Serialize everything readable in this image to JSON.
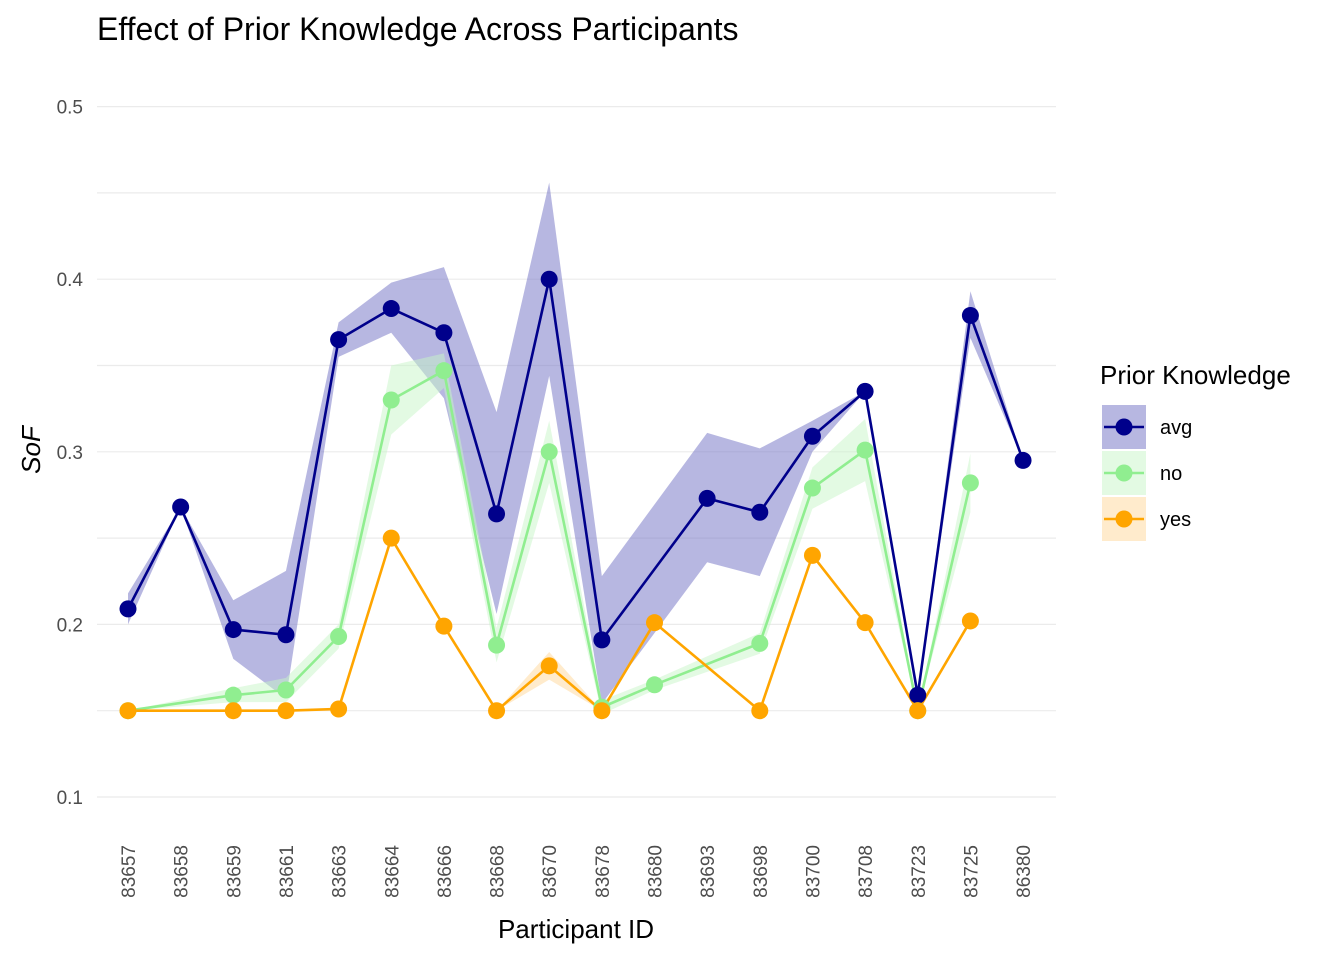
{
  "chart_data": {
    "type": "line",
    "title": "Effect of Prior Knowledge Across Participants",
    "xlabel": "Participant ID",
    "ylabel": "SoF",
    "ylim": [
      0.1,
      0.5
    ],
    "yticks": [
      0.1,
      0.2,
      0.3,
      0.4,
      0.5
    ],
    "yticks_labels": [
      "0.1",
      "0.2",
      "0.3",
      "0.4",
      "0.5"
    ],
    "grid": true,
    "legend": {
      "title": "Prior Knowledge",
      "position": "right"
    },
    "categories": [
      "83657",
      "83658",
      "83659",
      "83661",
      "83663",
      "83664",
      "83666",
      "83668",
      "83670",
      "83678",
      "83680",
      "83693",
      "83698",
      "83700",
      "83708",
      "83723",
      "83725",
      "86380"
    ],
    "series": [
      {
        "name": "avg",
        "color": "#00008B",
        "band_color": "#7B7BC8",
        "values": [
          0.209,
          0.268,
          0.197,
          0.194,
          0.365,
          0.383,
          0.369,
          0.264,
          0.4,
          0.191,
          null,
          0.273,
          0.265,
          0.309,
          0.335,
          0.159,
          0.379,
          0.295
        ],
        "lower": [
          0.2,
          0.268,
          0.18,
          0.157,
          0.355,
          0.369,
          0.331,
          0.206,
          0.344,
          0.154,
          null,
          0.236,
          0.228,
          0.3,
          0.335,
          0.159,
          0.366,
          0.295
        ],
        "upper": [
          0.218,
          0.268,
          0.214,
          0.231,
          0.375,
          0.398,
          0.407,
          0.323,
          0.456,
          0.228,
          null,
          0.311,
          0.302,
          0.318,
          0.335,
          0.159,
          0.393,
          0.295
        ]
      },
      {
        "name": "no",
        "color": "#90EE90",
        "band_color": "#C8F5C8",
        "values": [
          0.15,
          null,
          0.159,
          0.162,
          0.193,
          0.33,
          0.347,
          0.188,
          0.3,
          0.152,
          0.165,
          null,
          0.189,
          0.279,
          0.301,
          0.15,
          0.282,
          null
        ],
        "lower": [
          0.15,
          null,
          0.155,
          0.155,
          0.186,
          0.31,
          0.337,
          0.178,
          0.282,
          0.148,
          0.162,
          null,
          0.183,
          0.267,
          0.283,
          0.15,
          0.265,
          null
        ],
        "upper": [
          0.15,
          null,
          0.163,
          0.169,
          0.2,
          0.35,
          0.357,
          0.198,
          0.318,
          0.156,
          0.168,
          null,
          0.195,
          0.291,
          0.319,
          0.15,
          0.299,
          null
        ]
      },
      {
        "name": "yes",
        "color": "#FFA500",
        "band_color": "#FFD89A",
        "values": [
          0.15,
          null,
          0.15,
          0.15,
          0.151,
          0.25,
          0.199,
          0.15,
          0.176,
          0.15,
          0.201,
          null,
          0.15,
          0.24,
          0.201,
          0.15,
          0.202,
          null
        ],
        "lower": [
          0.15,
          null,
          0.15,
          0.15,
          0.151,
          0.25,
          0.199,
          0.15,
          0.168,
          0.15,
          0.201,
          null,
          0.15,
          0.24,
          0.201,
          0.15,
          0.202,
          null
        ],
        "upper": [
          0.15,
          null,
          0.15,
          0.15,
          0.151,
          0.25,
          0.199,
          0.15,
          0.184,
          0.15,
          0.201,
          null,
          0.15,
          0.24,
          0.201,
          0.15,
          0.202,
          null
        ]
      }
    ]
  }
}
